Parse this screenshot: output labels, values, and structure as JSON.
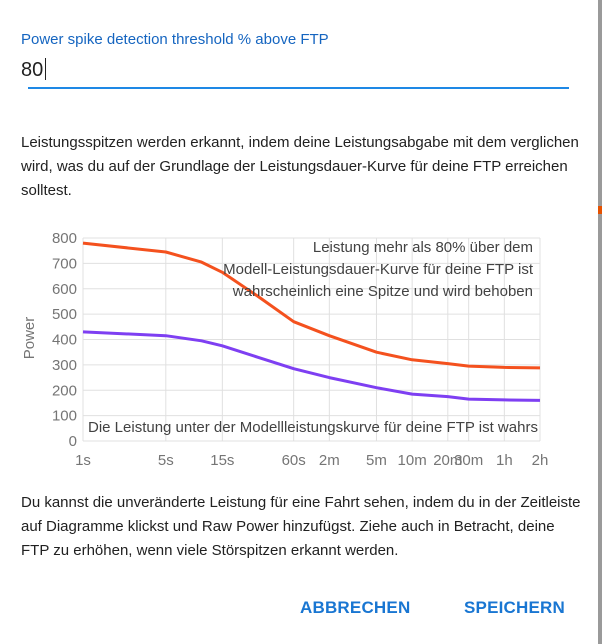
{
  "dialog": {
    "field_label": "Power spike detection threshold % above FTP",
    "field_value": "80",
    "description": "Leistungsspitzen werden erkannt, indem deine Leistungsabgabe mit dem verglichen wird, was du auf der Grundlage der Leistungsdauer-Kurve für deine FTP erreichen solltest.",
    "footer_text": "Du kannst die unveränderte Leistung für eine Fahrt sehen, indem du in der Zeitleiste auf Diagramme klickst und Raw Power hinzufügst. Ziehe auch in Betracht, deine FTP zu erhöhen, wenn viele Störspitzen erkannt werden.",
    "cancel_label": "ABBRECHEN",
    "save_label": "SPEICHERN"
  },
  "chart_data": {
    "type": "line",
    "ylabel": "Power",
    "ylim": [
      0,
      800
    ],
    "yticks": [
      "0",
      "100",
      "200",
      "300",
      "400",
      "500",
      "600",
      "700",
      "800"
    ],
    "xticks": [
      "1s",
      "5s",
      "15s",
      "60s",
      "2m",
      "5m",
      "10m",
      "20m",
      "30m",
      "1h",
      "2h"
    ],
    "x_seconds": [
      1,
      5,
      10,
      15,
      30,
      60,
      120,
      300,
      600,
      1200,
      1800,
      3600,
      7200
    ],
    "series": [
      {
        "color": "#f4511e",
        "values": [
          780,
          745,
          705,
          665,
          570,
          470,
          415,
          350,
          320,
          305,
          295,
          290,
          288
        ]
      },
      {
        "color": "#7e3ff2",
        "values": [
          430,
          415,
          395,
          375,
          330,
          285,
          250,
          210,
          185,
          175,
          165,
          162,
          160
        ]
      }
    ],
    "annotation_top": [
      "Leistung mehr als 80% über dem",
      "Modell-Leistungsdauer-Kurve für deine FTP ist",
      "wahrscheinlich eine Spitze und wird behoben"
    ],
    "annotation_bottom": "Die Leistung unter der Modellleistungskurve für deine FTP ist wahrs",
    "colors": {
      "grid": "#e0e0e0",
      "tick_text": "#757575",
      "annotation_text": "#424242"
    }
  }
}
